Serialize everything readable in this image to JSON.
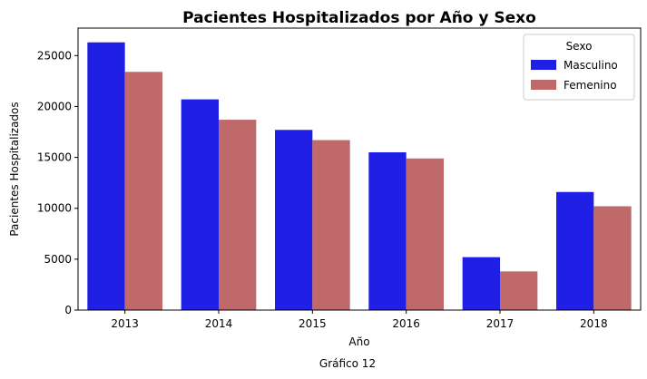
{
  "chart_data": {
    "type": "bar",
    "title": "Pacientes Hospitalizados por Año y Sexo",
    "xlabel": "Año",
    "ylabel": "Pacientes Hospitalizados",
    "caption": "Gráfico 12",
    "categories": [
      "2013",
      "2014",
      "2015",
      "2016",
      "2017",
      "2018"
    ],
    "series": [
      {
        "name": "Masculino",
        "color": "#1f1fe6",
        "values": [
          26300,
          20700,
          17700,
          15500,
          5200,
          11600
        ]
      },
      {
        "name": "Femenino",
        "color": "#c0696b",
        "values": [
          23400,
          18700,
          16700,
          14900,
          3800,
          10200
        ]
      }
    ],
    "ylim": [
      0,
      27700
    ],
    "yticks": [
      0,
      5000,
      10000,
      15000,
      20000,
      25000
    ],
    "legend": {
      "title": "Sexo",
      "placement": "top-right"
    },
    "grid": false
  }
}
